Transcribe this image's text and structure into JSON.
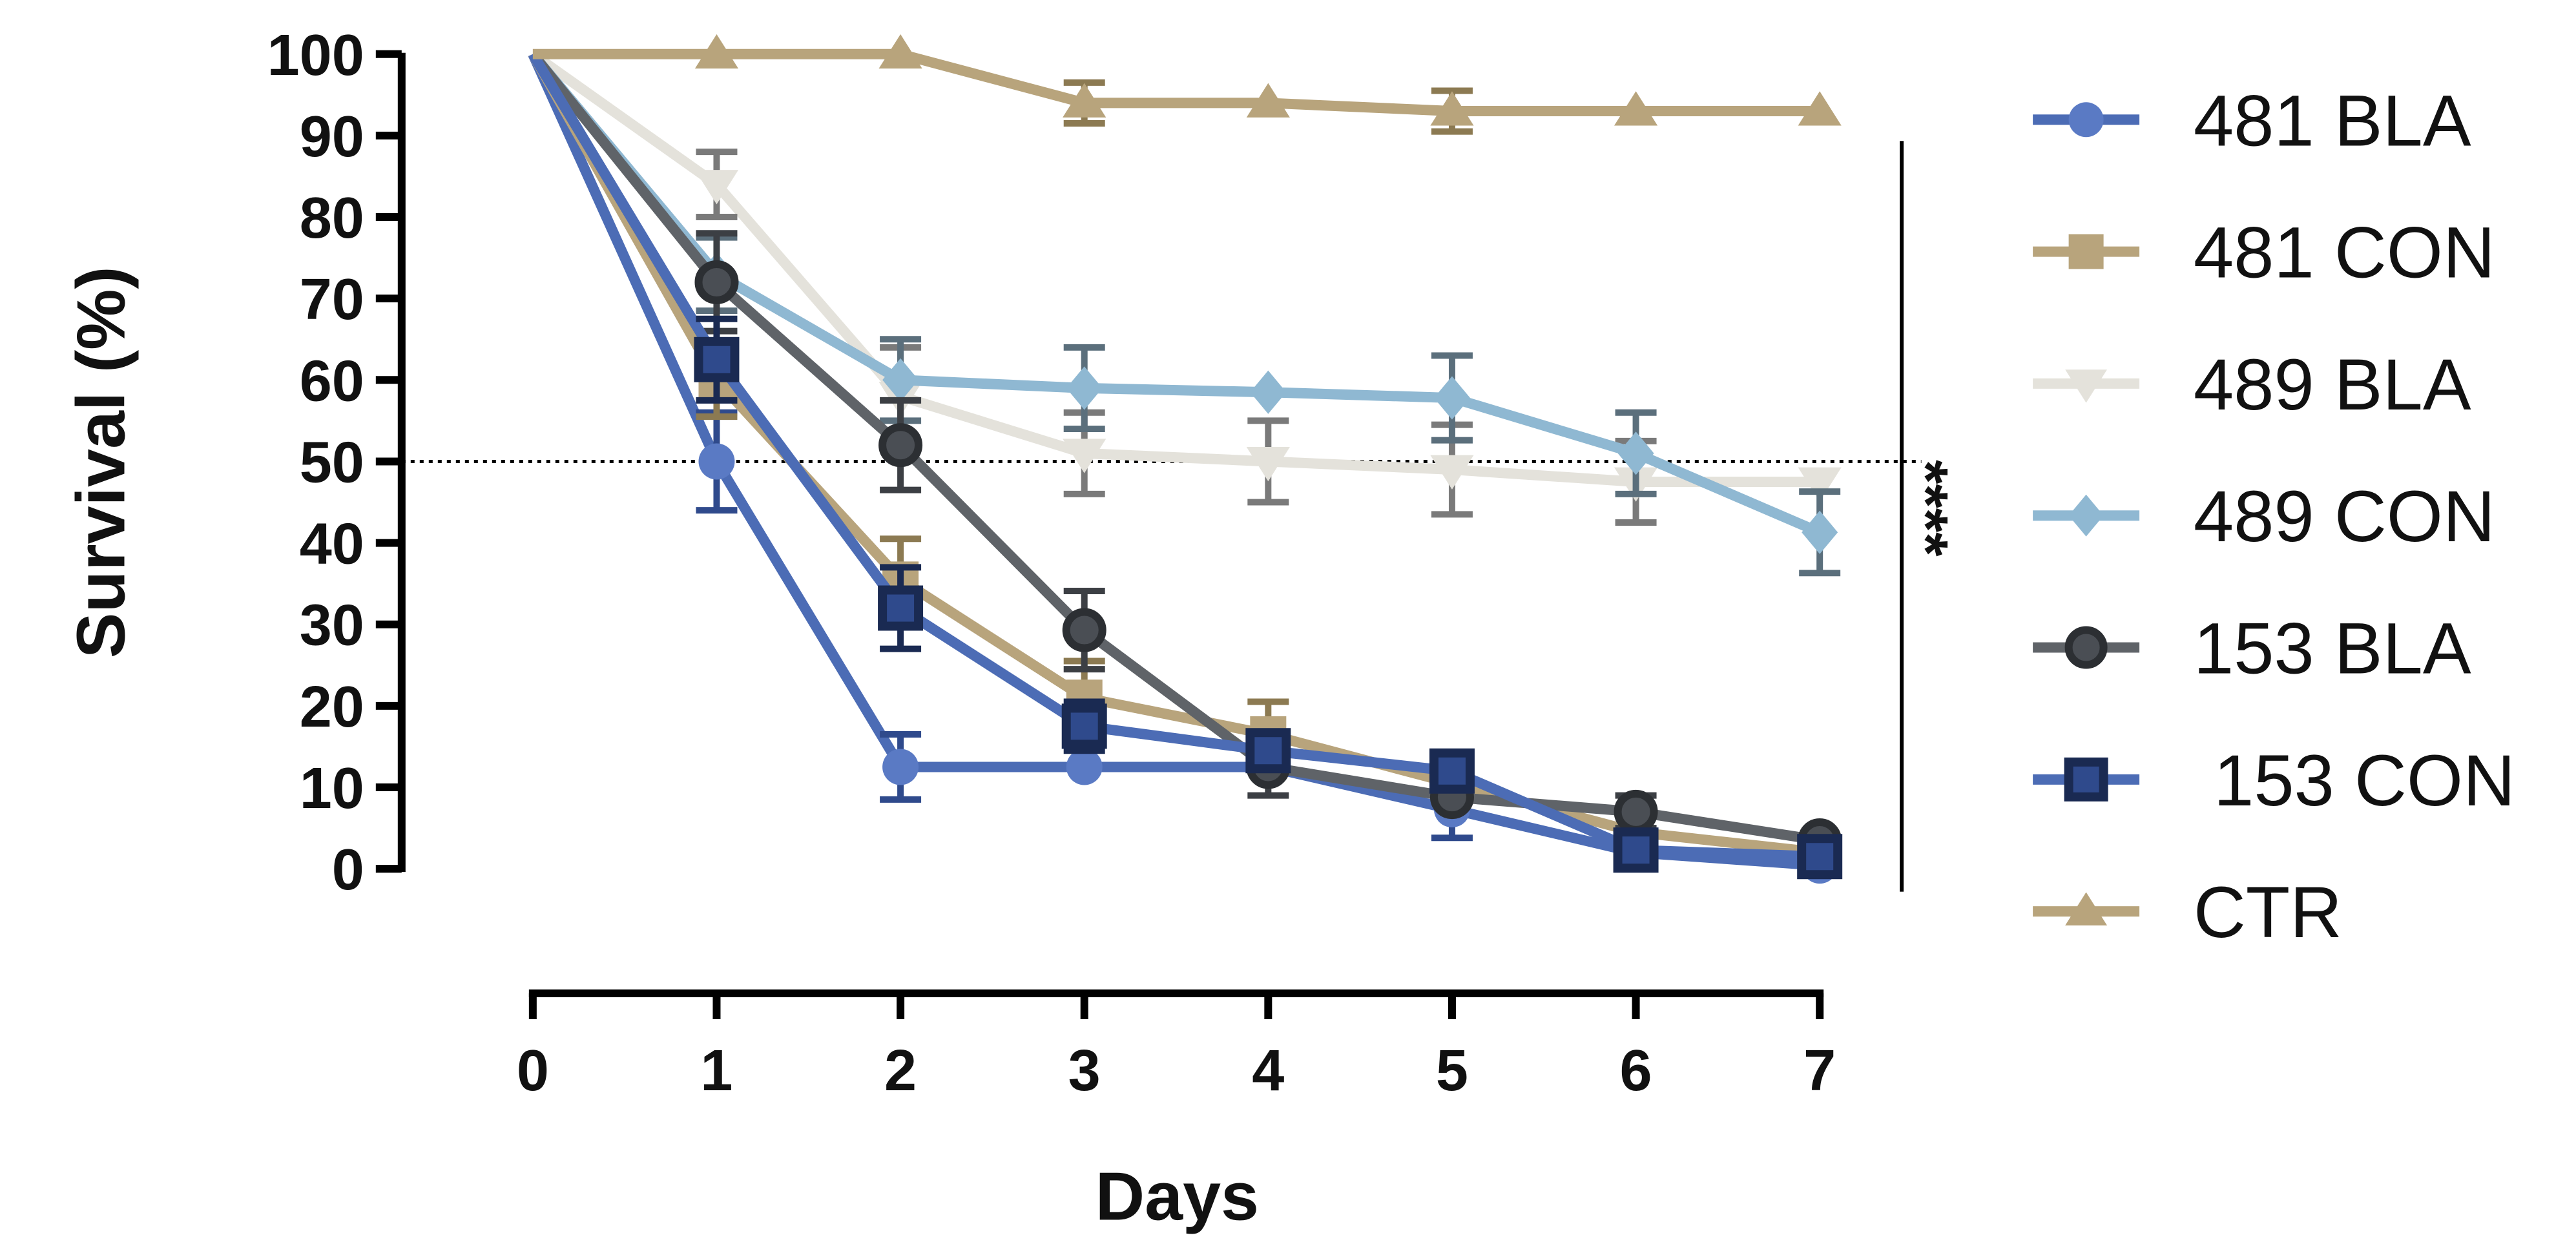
{
  "chart_data": {
    "type": "line",
    "title": "",
    "xlabel": "Days",
    "ylabel": "Survival (%)",
    "x": [
      0,
      1,
      2,
      3,
      4,
      5,
      6,
      7
    ],
    "xlim": [
      0,
      7
    ],
    "ylim": [
      0,
      100
    ],
    "x_ticks": [
      "0",
      "1",
      "2",
      "3",
      "4",
      "5",
      "6",
      "7"
    ],
    "y_ticks": [
      "0",
      "10",
      "20",
      "30",
      "40",
      "50",
      "60",
      "70",
      "80",
      "90",
      "100"
    ],
    "reference_line": {
      "y": 50,
      "style": "dotted"
    },
    "significance": {
      "label": "****"
    },
    "legend_position": "right",
    "series": [
      {
        "name": "481 BLA",
        "marker": "circle",
        "color": "#4c6cb5",
        "marker_fill": "#5a7ac4",
        "values": [
          100,
          50,
          12.5,
          12.5,
          12.5,
          7.3,
          2,
          0.4
        ],
        "errors": [
          0,
          6,
          4,
          0,
          0,
          3.5,
          0,
          0
        ]
      },
      {
        "name": "481 CON",
        "marker": "square",
        "color": "#b8a47c",
        "marker_fill": "#b8a47c",
        "values": [
          100,
          60,
          35.5,
          21,
          16.5,
          10.5,
          4.5,
          2
        ],
        "errors": [
          0,
          4.5,
          5,
          4.5,
          4,
          0,
          0,
          0
        ]
      },
      {
        "name": "489 BLA",
        "marker": "triangle-down",
        "color": "#e4e2db",
        "marker_fill": "#e4e2db",
        "values": [
          100,
          84,
          58,
          51,
          50,
          49,
          47.5,
          47.5
        ],
        "errors": [
          0,
          4,
          6,
          5,
          5,
          5.5,
          5,
          0
        ]
      },
      {
        "name": "489 CON",
        "marker": "diamond",
        "color": "#8fb8d2",
        "marker_fill": "#8fb8d2",
        "values": [
          100,
          73,
          60,
          59,
          58.5,
          57.8,
          51,
          41.3
        ],
        "errors": [
          0,
          4.5,
          5,
          5,
          0,
          5.2,
          5,
          5
        ]
      },
      {
        "name": "153 BLA",
        "marker": "circle",
        "color": "#5f6368",
        "marker_fill": "#4a4e54",
        "values": [
          100,
          72,
          52,
          29.3,
          12.5,
          8.8,
          7,
          3.5
        ],
        "errors": [
          0,
          6,
          5.5,
          4.8,
          3.5,
          0,
          2,
          0
        ]
      },
      {
        "name": " 153 CON",
        "marker": "square",
        "color": "#4c6cb5",
        "marker_fill": "#2f4a8c",
        "values": [
          100,
          62.5,
          32,
          17.5,
          14.5,
          12,
          2.3,
          1.5
        ],
        "errors": [
          0,
          5,
          5,
          3,
          0,
          2,
          0,
          0
        ]
      },
      {
        "name": "CTR",
        "marker": "triangle-up",
        "color": "#b8a47c",
        "marker_fill": "#b8a47c",
        "values": [
          100,
          100,
          100,
          94,
          94,
          93,
          93,
          93
        ],
        "errors": [
          0,
          0,
          0,
          2.5,
          0,
          2.5,
          0,
          0
        ]
      }
    ]
  }
}
